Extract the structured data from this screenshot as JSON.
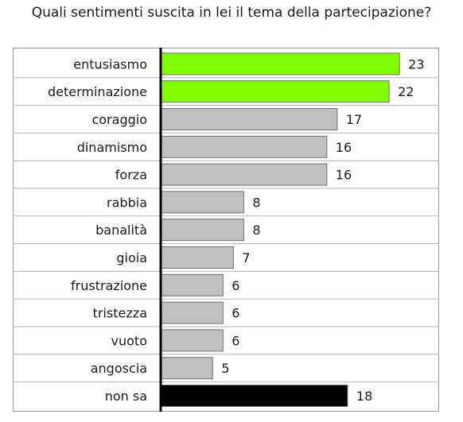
{
  "chart_data": {
    "type": "bar",
    "orientation": "horizontal",
    "title": "Quali sentimenti suscita in lei il tema della partecipazione?",
    "categories": [
      "entusiasmo",
      "determinazione",
      "coraggio",
      "dinamismo",
      "forza",
      "rabbia",
      "banalità",
      "gioia",
      "frustrazione",
      "tristezza",
      "vuoto",
      "angoscia",
      "non sa"
    ],
    "values": [
      23,
      22,
      17,
      16,
      16,
      8,
      8,
      7,
      6,
      6,
      6,
      5,
      18
    ],
    "bar_colors": [
      "#80ff00",
      "#80ff00",
      "#c0c0c0",
      "#c0c0c0",
      "#c0c0c0",
      "#c0c0c0",
      "#c0c0c0",
      "#c0c0c0",
      "#c0c0c0",
      "#c0c0c0",
      "#c0c0c0",
      "#c0c0c0",
      "#000000"
    ],
    "xlim": [
      0,
      25
    ],
    "grid": true,
    "legend": "none"
  }
}
